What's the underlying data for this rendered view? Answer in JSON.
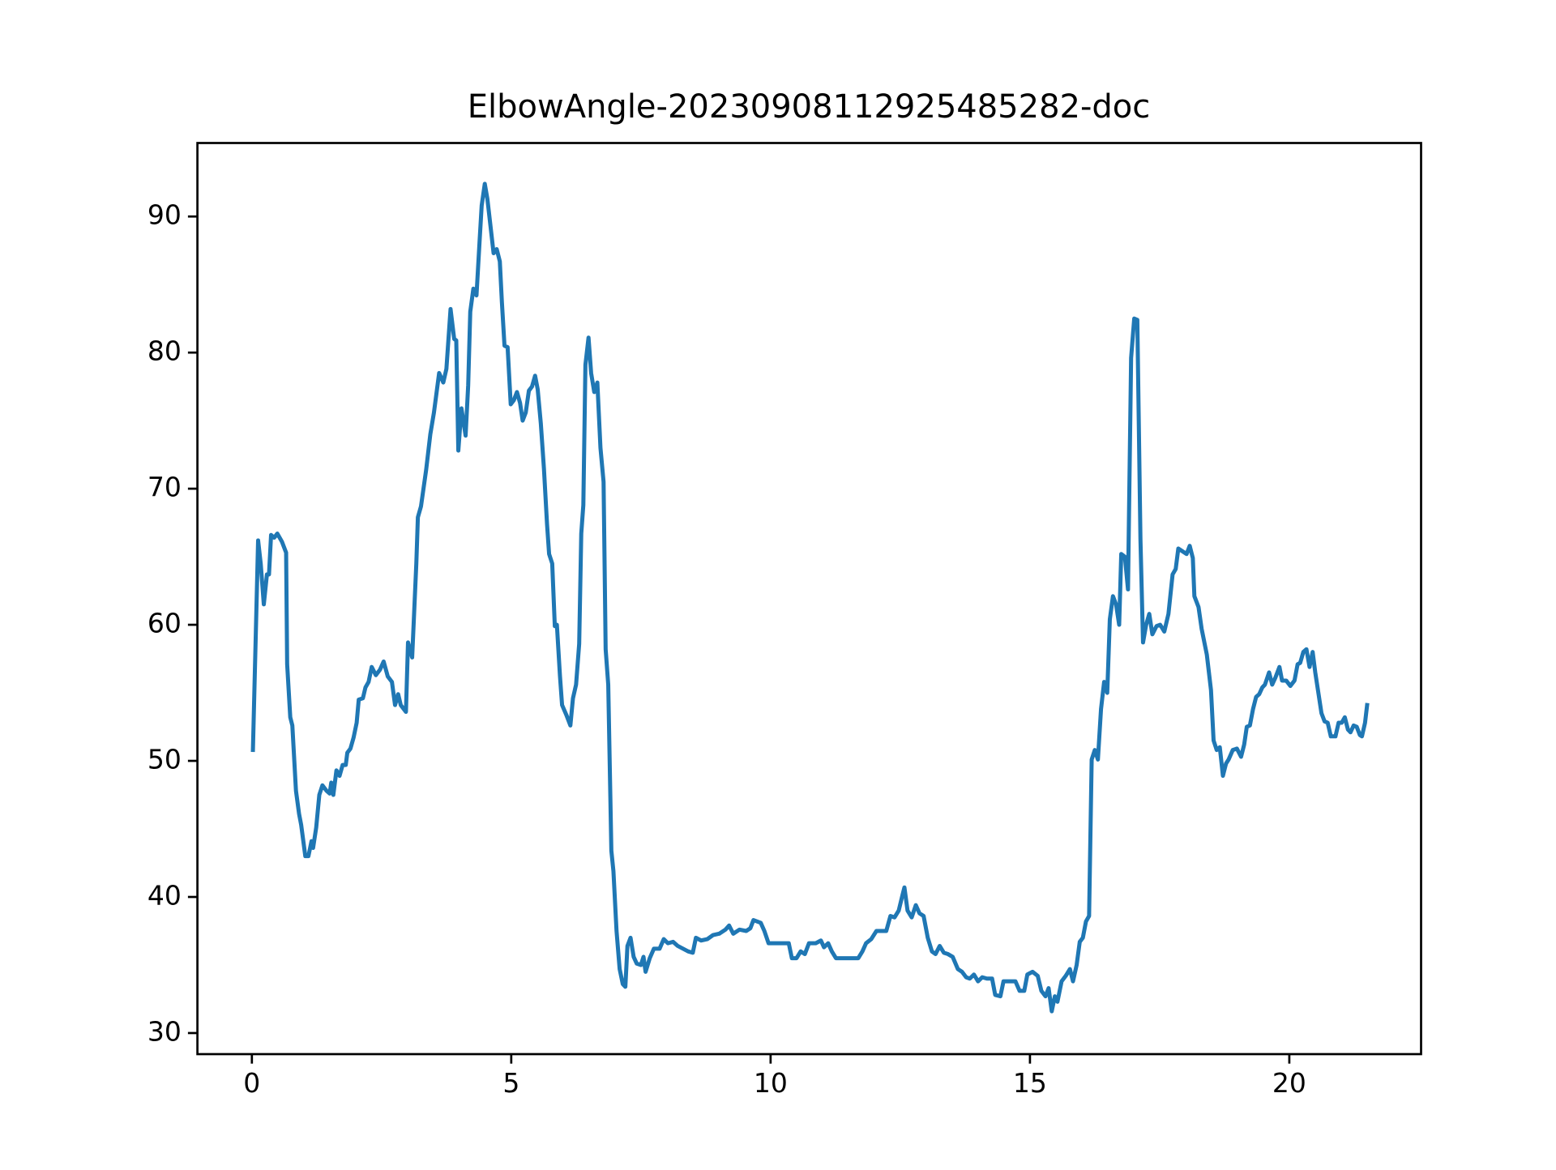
{
  "chart_data": {
    "type": "line",
    "title": "ElbowAngle-20230908112925485282-doc",
    "x": [
      0.02,
      0.12,
      0.17,
      0.23,
      0.29,
      0.33,
      0.37,
      0.43,
      0.49,
      0.58,
      0.66,
      0.68,
      0.74,
      0.78,
      0.85,
      0.91,
      0.95,
      1.03,
      1.09,
      1.15,
      1.18,
      1.24,
      1.3,
      1.36,
      1.44,
      1.5,
      1.53,
      1.57,
      1.63,
      1.69,
      1.75,
      1.81,
      1.84,
      1.9,
      1.96,
      2.02,
      2.06,
      2.14,
      2.19,
      2.25,
      2.31,
      2.39,
      2.47,
      2.54,
      2.62,
      2.7,
      2.76,
      2.82,
      2.87,
      2.97,
      3.01,
      3.09,
      3.17,
      3.2,
      3.26,
      3.36,
      3.44,
      3.51,
      3.61,
      3.69,
      3.75,
      3.83,
      3.9,
      3.94,
      3.98,
      4.04,
      4.12,
      4.17,
      4.21,
      4.27,
      4.33,
      4.39,
      4.43,
      4.49,
      4.54,
      4.6,
      4.66,
      4.72,
      4.78,
      4.82,
      4.87,
      4.93,
      4.99,
      5.05,
      5.11,
      5.17,
      5.22,
      5.28,
      5.34,
      5.4,
      5.46,
      5.51,
      5.57,
      5.63,
      5.69,
      5.73,
      5.79,
      5.84,
      5.88,
      5.94,
      5.98,
      6.06,
      6.14,
      6.19,
      6.25,
      6.31,
      6.35,
      6.39,
      6.43,
      6.49,
      6.54,
      6.6,
      6.66,
      6.72,
      6.78,
      6.82,
      6.87,
      6.93,
      6.97,
      7.03,
      7.09,
      7.15,
      7.2,
      7.24,
      7.3,
      7.36,
      7.42,
      7.5,
      7.55,
      7.59,
      7.67,
      7.75,
      7.86,
      7.94,
      8.02,
      8.12,
      8.21,
      8.31,
      8.41,
      8.5,
      8.56,
      8.66,
      8.78,
      8.89,
      9.01,
      9.13,
      9.2,
      9.28,
      9.4,
      9.53,
      9.61,
      9.67,
      9.81,
      9.88,
      9.96,
      10.06,
      10.16,
      10.27,
      10.35,
      10.41,
      10.5,
      10.58,
      10.66,
      10.74,
      10.87,
      10.97,
      11.03,
      11.11,
      11.18,
      11.26,
      11.46,
      11.69,
      11.77,
      11.84,
      11.94,
      12.04,
      12.14,
      12.23,
      12.31,
      12.39,
      12.47,
      12.54,
      12.58,
      12.64,
      12.72,
      12.8,
      12.87,
      12.95,
      13.03,
      13.11,
      13.18,
      13.26,
      13.34,
      13.42,
      13.51,
      13.61,
      13.69,
      13.77,
      13.84,
      13.92,
      14.0,
      14.08,
      14.17,
      14.27,
      14.33,
      14.43,
      14.49,
      14.62,
      14.72,
      14.8,
      14.89,
      14.95,
      15.05,
      15.15,
      15.22,
      15.3,
      15.36,
      15.42,
      15.48,
      15.53,
      15.61,
      15.69,
      15.77,
      15.83,
      15.9,
      15.96,
      16.02,
      16.08,
      16.14,
      16.19,
      16.25,
      16.31,
      16.37,
      16.43,
      16.49,
      16.54,
      16.6,
      16.66,
      16.72,
      16.76,
      16.83,
      16.89,
      16.95,
      17.01,
      17.07,
      17.13,
      17.18,
      17.24,
      17.3,
      17.36,
      17.44,
      17.51,
      17.59,
      17.67,
      17.75,
      17.81,
      17.86,
      17.94,
      18.02,
      18.08,
      18.14,
      18.17,
      18.25,
      18.31,
      18.41,
      18.49,
      18.54,
      18.6,
      18.66,
      18.72,
      18.78,
      18.83,
      18.91,
      18.99,
      19.07,
      19.13,
      19.18,
      19.24,
      19.3,
      19.36,
      19.42,
      19.48,
      19.53,
      19.61,
      19.67,
      19.73,
      19.81,
      19.86,
      19.94,
      20.02,
      20.1,
      20.16,
      20.21,
      20.27,
      20.33,
      20.39,
      20.45,
      20.5,
      20.56,
      20.62,
      20.68,
      20.74,
      20.8,
      20.89,
      20.95,
      21.01,
      21.07,
      21.13,
      21.18,
      21.24,
      21.3,
      21.36,
      21.4,
      21.46,
      21.5
    ],
    "series": [
      {
        "color": "#1f77b4",
        "values": [
          50.8,
          66.2,
          64.5,
          61.5,
          63.7,
          63.7,
          66.6,
          66.4,
          66.7,
          66.1,
          65.3,
          57.1,
          53.2,
          52.6,
          47.8,
          46.1,
          45.3,
          43.0,
          43.0,
          44.1,
          43.6,
          45.1,
          47.5,
          48.2,
          47.8,
          47.6,
          48.4,
          47.5,
          49.3,
          48.9,
          49.7,
          49.7,
          50.6,
          50.9,
          51.7,
          52.8,
          54.5,
          54.6,
          55.4,
          55.8,
          56.9,
          56.3,
          56.7,
          57.3,
          56.2,
          55.8,
          54.1,
          54.9,
          54.1,
          53.6,
          58.7,
          57.6,
          64.5,
          67.9,
          68.7,
          71.4,
          74.0,
          75.6,
          78.5,
          77.8,
          78.8,
          83.2,
          81.0,
          80.9,
          72.8,
          75.9,
          73.9,
          77.6,
          83.0,
          84.7,
          84.2,
          88.2,
          90.8,
          92.4,
          91.3,
          89.3,
          87.3,
          87.6,
          86.7,
          83.7,
          80.5,
          80.4,
          76.2,
          76.5,
          77.1,
          76.3,
          75.0,
          75.6,
          77.2,
          77.5,
          78.3,
          77.3,
          74.8,
          71.5,
          67.4,
          65.2,
          64.5,
          59.9,
          60.0,
          56.2,
          54.1,
          53.4,
          52.6,
          54.6,
          55.6,
          58.6,
          66.7,
          68.8,
          79.1,
          81.1,
          78.5,
          77.1,
          77.8,
          73.0,
          70.5,
          58.2,
          55.6,
          43.4,
          41.9,
          37.5,
          34.7,
          33.6,
          33.4,
          36.4,
          37.0,
          35.6,
          35.1,
          35.0,
          35.6,
          34.5,
          35.5,
          36.2,
          36.2,
          36.9,
          36.6,
          36.7,
          36.4,
          36.2,
          36.0,
          35.9,
          37.0,
          36.8,
          36.9,
          37.2,
          37.3,
          37.6,
          37.9,
          37.3,
          37.6,
          37.5,
          37.7,
          38.3,
          38.1,
          37.5,
          36.6,
          36.6,
          36.6,
          36.6,
          36.6,
          35.5,
          35.5,
          36.0,
          35.8,
          36.6,
          36.6,
          36.8,
          36.3,
          36.6,
          36.0,
          35.5,
          35.5,
          35.5,
          36.0,
          36.6,
          36.9,
          37.5,
          37.5,
          37.5,
          38.6,
          38.5,
          39.0,
          40.1,
          40.7,
          39.0,
          38.5,
          39.4,
          38.8,
          38.6,
          37.0,
          36.0,
          35.8,
          36.4,
          35.9,
          35.8,
          35.6,
          34.7,
          34.5,
          34.1,
          34.0,
          34.3,
          33.8,
          34.1,
          34.0,
          34.0,
          32.8,
          32.7,
          33.8,
          33.8,
          33.8,
          33.1,
          33.1,
          34.3,
          34.5,
          34.2,
          33.1,
          32.7,
          33.3,
          31.6,
          32.7,
          32.3,
          33.8,
          34.2,
          34.7,
          33.8,
          35.0,
          36.7,
          37.0,
          38.2,
          38.6,
          50.1,
          50.8,
          50.1,
          53.8,
          55.8,
          55.0,
          60.4,
          62.1,
          61.5,
          60.0,
          65.2,
          65.0,
          62.6,
          79.6,
          82.5,
          82.4,
          66.3,
          58.7,
          60.0,
          60.8,
          59.3,
          59.9,
          60.0,
          59.5,
          60.8,
          63.7,
          64.1,
          65.6,
          65.4,
          65.2,
          65.8,
          64.9,
          62.1,
          61.3,
          59.7,
          57.8,
          55.2,
          51.5,
          50.8,
          51.0,
          48.9,
          49.8,
          50.1,
          50.8,
          50.9,
          50.3,
          51.2,
          52.5,
          52.6,
          53.8,
          54.7,
          54.9,
          55.4,
          55.6,
          56.5,
          55.6,
          56.1,
          56.9,
          55.9,
          55.9,
          55.5,
          55.9,
          57.1,
          57.2,
          58.0,
          58.2,
          56.9,
          58.0,
          56.5,
          55.0,
          53.5,
          52.9,
          52.8,
          51.8,
          51.8,
          52.8,
          52.8,
          53.2,
          52.3,
          52.1,
          52.6,
          52.5,
          51.9,
          51.8,
          52.8,
          54.1
        ]
      }
    ],
    "xlim": [
      -1.05,
      22.54
    ],
    "ylim": [
      28.45,
      95.4
    ],
    "xticks": [
      0,
      5,
      10,
      15,
      20
    ],
    "yticks": [
      30,
      40,
      50,
      60,
      70,
      80,
      90
    ],
    "grid": false
  }
}
